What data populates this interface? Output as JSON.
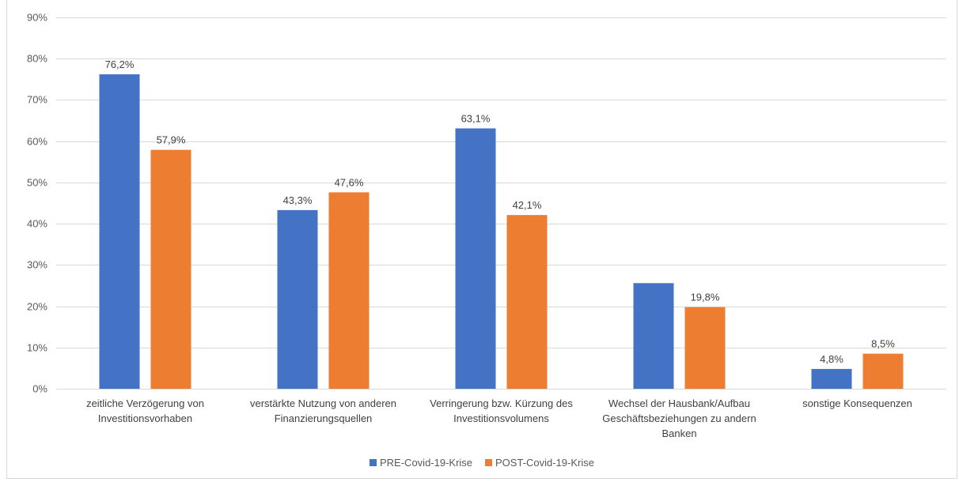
{
  "chart_data": {
    "type": "bar",
    "categories": [
      [
        "zeitliche Verzögerung von",
        "Investitionsvorhaben"
      ],
      [
        "verstärkte Nutzung von anderen",
        "Finanzierungsquellen"
      ],
      [
        "Verringerung bzw. Kürzung des",
        "Investitionsvolumens"
      ],
      [
        "Wechsel der Hausbank/Aufbau",
        "Geschäftsbeziehungen zu andern",
        "Banken"
      ],
      [
        "sonstige Konsequenzen"
      ]
    ],
    "series": [
      {
        "name": "PRE-Covid-19-Krise",
        "color": "#4472C4",
        "values": [
          76.2,
          43.3,
          63.1,
          25.6,
          4.8
        ],
        "labels": [
          "76,2%",
          "43,3%",
          "63,1%",
          "",
          "4,8%"
        ]
      },
      {
        "name": "POST-Covid-19-Krise",
        "color": "#ED7D31",
        "values": [
          57.9,
          47.6,
          42.1,
          19.8,
          8.5
        ],
        "labels": [
          "57,9%",
          "47,6%",
          "42,1%",
          "19,8%",
          "8,5%"
        ]
      }
    ],
    "ylim": [
      0,
      90
    ],
    "yticks": [
      0,
      10,
      20,
      30,
      40,
      50,
      60,
      70,
      80,
      90
    ],
    "ytick_labels": [
      "0%",
      "10%",
      "20%",
      "30%",
      "40%",
      "50%",
      "60%",
      "70%",
      "80%",
      "90%"
    ],
    "grid": true,
    "legend_position": "bottom"
  }
}
